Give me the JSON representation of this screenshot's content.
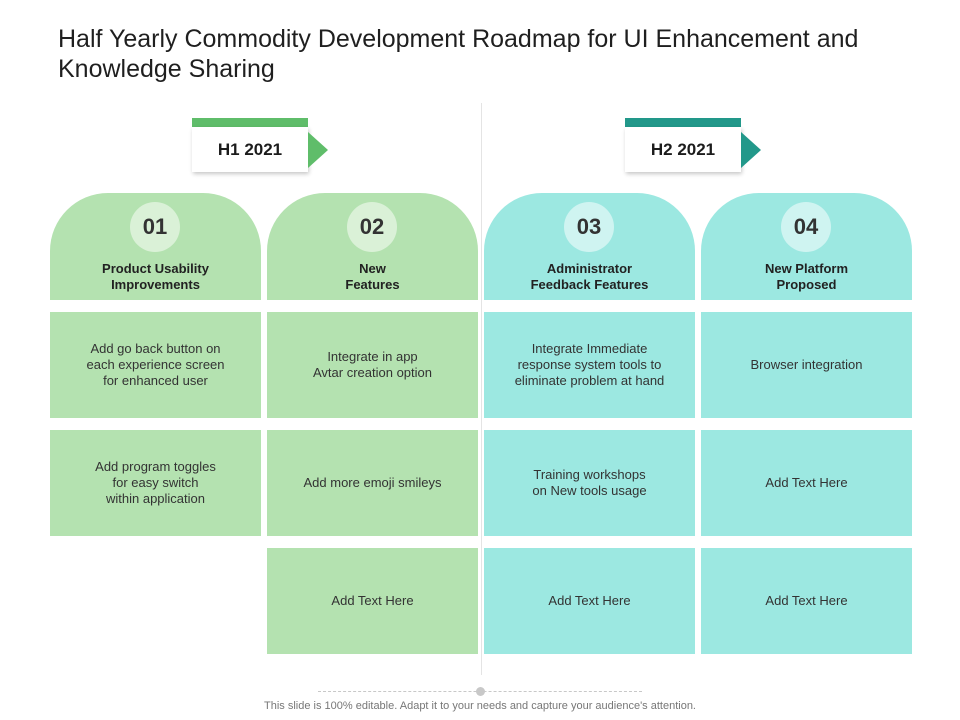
{
  "title": "Half Yearly Commodity Development Roadmap for UI Enhancement and Knowledge Sharing",
  "periods": [
    {
      "label": "H1 2021",
      "color": "#5fbd6a"
    },
    {
      "label": "H2 2021",
      "color": "#22988a"
    }
  ],
  "columns": [
    {
      "number": "01",
      "title": "Product Usability\nImprovements",
      "items": [
        "Add go back button on\neach experience screen\nfor enhanced user",
        "Add program toggles\nfor  easy switch\nwithin application"
      ]
    },
    {
      "number": "02",
      "title": "New\nFeatures",
      "items": [
        "Integrate in app\nAvtar creation option",
        "Add more emoji smileys",
        "Add Text Here"
      ]
    },
    {
      "number": "03",
      "title": "Administrator\nFeedback Features",
      "items": [
        "Integrate Immediate\nresponse system tools to\neliminate problem at hand",
        "Training workshops\non New  tools usage",
        "Add Text Here"
      ]
    },
    {
      "number": "04",
      "title": "New Platform\nProposed",
      "items": [
        "Browser integration",
        "Add Text Here",
        "Add Text Here"
      ]
    }
  ],
  "colors": {
    "green_fill": "#b4e2b0",
    "teal_fill": "#9ce8e1"
  },
  "footer": "This slide is 100% editable. Adapt it to your needs and capture your audience's attention."
}
